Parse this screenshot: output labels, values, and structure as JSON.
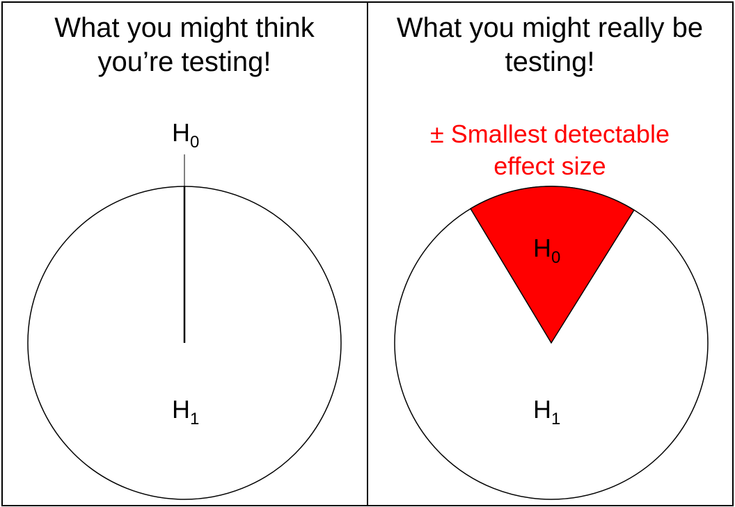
{
  "left_panel": {
    "title_line1": "What you might think",
    "title_line2": "you’re testing!",
    "null_label": "H",
    "null_sub": "0",
    "alt_label": "H",
    "alt_sub": "1"
  },
  "right_panel": {
    "title_line1": "What you might really be",
    "title_line2": "testing!",
    "caption_line1": "± Smallest detectable",
    "caption_line2": "effect size",
    "caption_color": "#ff0000",
    "wedge_color": "#ff0000",
    "null_label": "H",
    "null_sub": "0",
    "alt_label": "H",
    "alt_sub": "1"
  }
}
